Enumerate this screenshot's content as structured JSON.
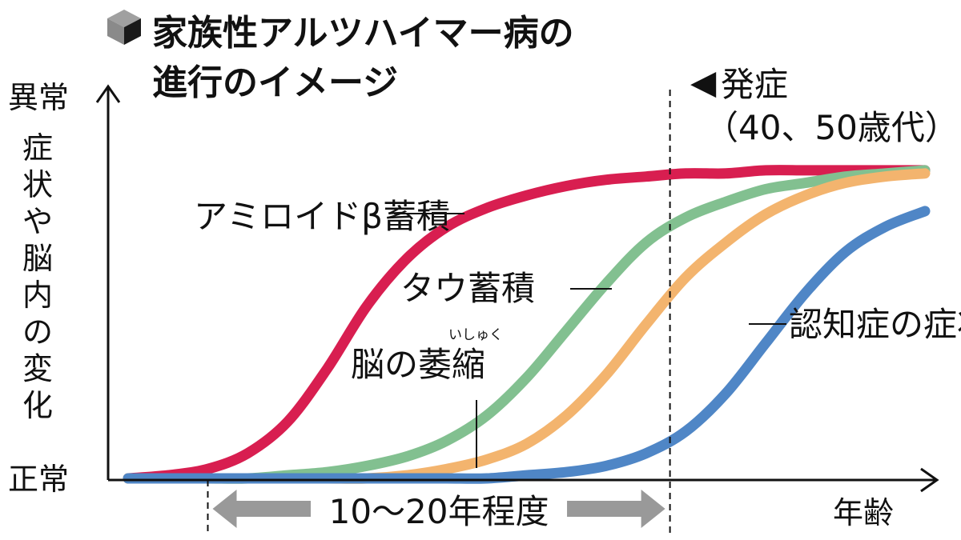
{
  "title": {
    "line1": "家族性アルツハイマー病の",
    "line2": "進行のイメージ"
  },
  "y_axis": {
    "top_label": "異常",
    "bottom_label": "正常",
    "label_chars": [
      "症",
      "状",
      "や",
      "脳",
      "内",
      "の",
      "変",
      "化"
    ]
  },
  "x_axis": {
    "label": "年齢"
  },
  "onset": {
    "marker": "◀",
    "label": "発症",
    "age": "（40、50歳代）"
  },
  "span": {
    "label": "10〜20年程度"
  },
  "chart_data": {
    "type": "line",
    "title": "家族性アルツハイマー病の進行のイメージ",
    "xlabel": "年齢",
    "ylabel": "症状や脳内の変化",
    "y_labels": [
      "正常",
      "異常"
    ],
    "x": [
      0,
      5,
      10,
      15,
      20,
      25,
      30,
      35,
      40,
      45,
      50,
      55,
      60,
      65,
      70,
      75,
      80,
      85,
      90,
      95,
      100
    ],
    "ylim": [
      0,
      100
    ],
    "xlim": [
      0,
      100
    ],
    "series": [
      {
        "name": "アミロイドβ蓄積",
        "color": "#d81e50",
        "values": [
          0,
          1,
          3,
          8,
          18,
          35,
          55,
          70,
          80,
          86,
          90,
          93,
          95,
          96,
          97,
          97,
          98,
          98,
          98,
          98,
          98
        ]
      },
      {
        "name": "タウ蓄積",
        "color": "#82c090",
        "values": [
          0,
          0,
          0,
          0,
          1,
          2,
          4,
          7,
          12,
          20,
          32,
          47,
          62,
          75,
          83,
          88,
          92,
          94,
          96,
          97,
          98
        ]
      },
      {
        "name": "脳の萎縮",
        "ruby": "いしゅく",
        "color": "#f3b46e",
        "values": [
          0,
          0,
          0,
          0,
          0,
          0,
          0,
          1,
          3,
          6,
          11,
          20,
          33,
          49,
          64,
          75,
          84,
          90,
          94,
          96,
          97
        ]
      },
      {
        "name": "認知症の症状",
        "color": "#4f86c6",
        "values": [
          0,
          0,
          0,
          0,
          0,
          0,
          0,
          0,
          0,
          0,
          1,
          2,
          4,
          8,
          15,
          27,
          43,
          59,
          72,
          80,
          85
        ]
      }
    ],
    "onset_x": 68,
    "span_x": [
      10,
      68
    ],
    "grid": false,
    "legend": "none (inline labels)"
  }
}
